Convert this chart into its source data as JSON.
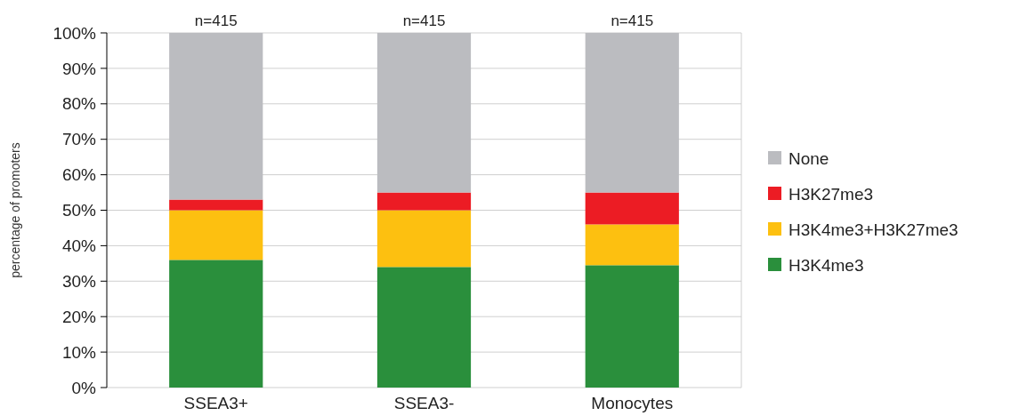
{
  "chart_data": {
    "type": "bar",
    "stacked": true,
    "ylabel": "percentage of promoters",
    "categories": [
      "SSEA3+",
      "SSEA3-",
      "Monocytes"
    ],
    "series": [
      {
        "name": "H3K4me3",
        "color": "#2a8f3c",
        "values": [
          36,
          34,
          34.5
        ]
      },
      {
        "name": "H3K4me3+H3K27me3",
        "color": "#fdc010",
        "values": [
          14,
          16,
          11.5
        ]
      },
      {
        "name": "H3K27me3",
        "color": "#ec1c24",
        "values": [
          3,
          5,
          9
        ]
      },
      {
        "name": "None",
        "color": "#bbbcc0",
        "values": [
          47,
          45,
          45
        ]
      }
    ],
    "ylim": [
      0,
      100
    ],
    "yticks": [
      {
        "value": 0,
        "label": "0%"
      },
      {
        "value": 10,
        "label": "10%"
      },
      {
        "value": 20,
        "label": "20%"
      },
      {
        "value": 30,
        "label": "30%"
      },
      {
        "value": 40,
        "label": "40%"
      },
      {
        "value": 50,
        "label": "50%"
      },
      {
        "value": 60,
        "label": "60%"
      },
      {
        "value": 70,
        "label": "70%"
      },
      {
        "value": 80,
        "label": "80%"
      },
      {
        "value": 90,
        "label": "90%"
      },
      {
        "value": 100,
        "label": "100%"
      }
    ],
    "grid": "y",
    "legend": "right",
    "annotations": [
      {
        "text": "n=415",
        "x": "SSEA3+",
        "y": 100
      },
      {
        "text": "n=415",
        "x": "SSEA3-",
        "y": 100
      },
      {
        "text": "n=415",
        "x": "Monocytes",
        "y": 100
      }
    ]
  }
}
